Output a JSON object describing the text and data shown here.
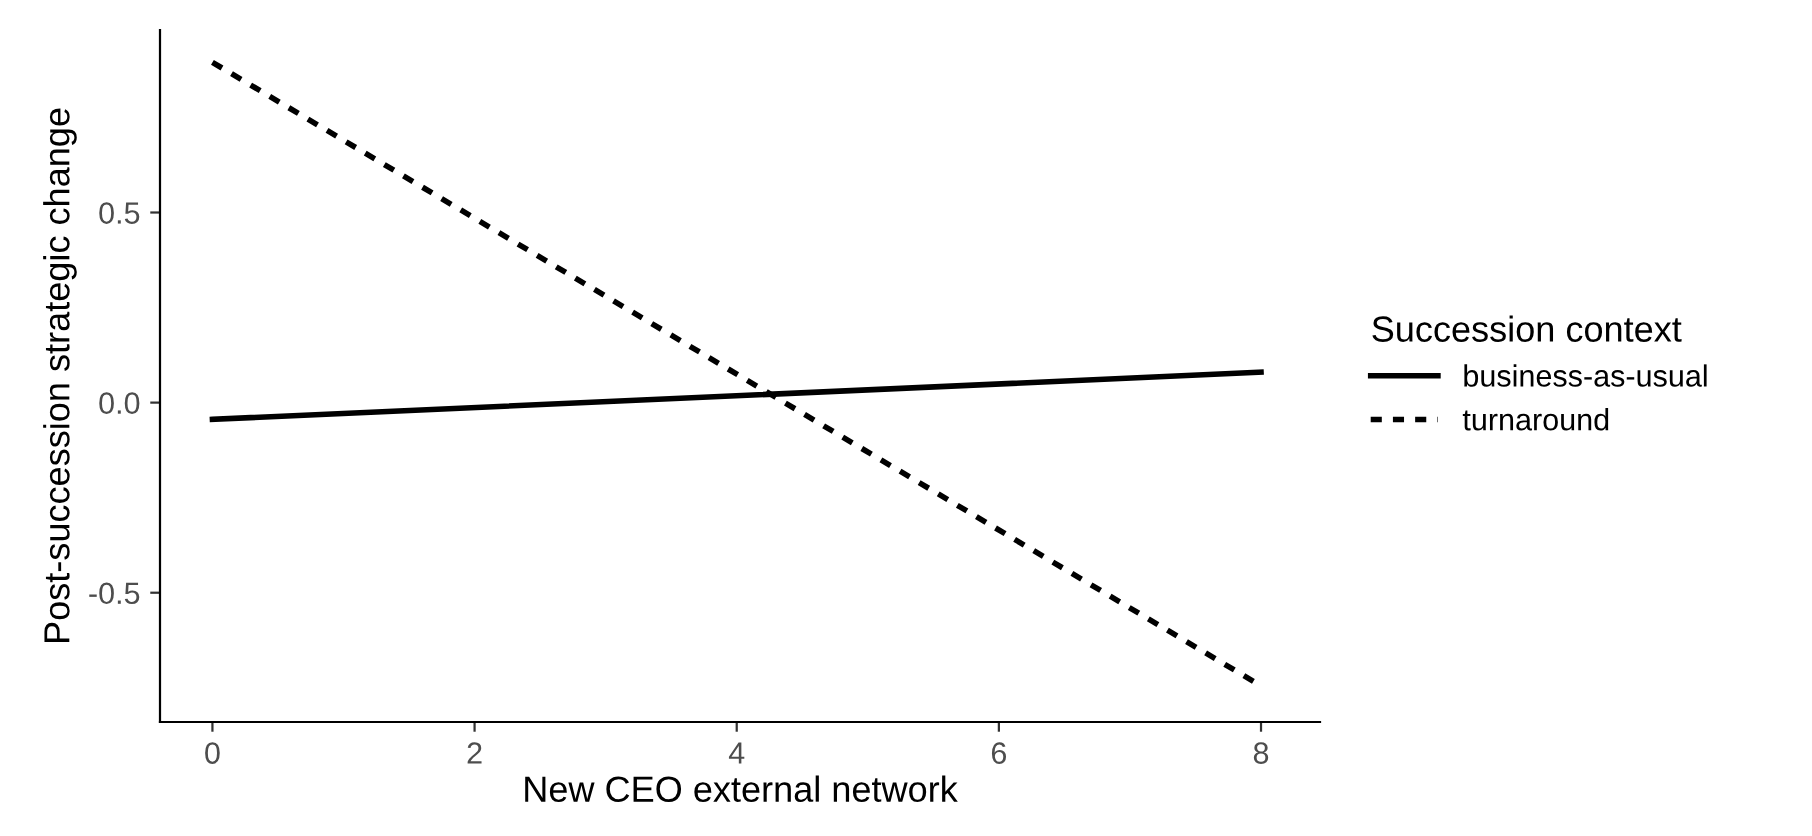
{
  "chart_data": {
    "type": "line",
    "xlabel": "New CEO external network",
    "ylabel": "Post-succession strategic change",
    "legend_title": "Succession context",
    "x": [
      0,
      8
    ],
    "series": [
      {
        "name": "business-as-usual",
        "color": "#000000",
        "values": [
          -0.044,
          0.08
        ],
        "line_style": "solid"
      },
      {
        "name": "turnaround",
        "color": "#000000",
        "values": [
          0.895,
          -0.745
        ],
        "line_style": "dotted"
      }
    ],
    "xlim": [
      -0.4,
      8.45
    ],
    "xticks": [
      0,
      2,
      4,
      6,
      8
    ],
    "ylim": [
      -0.84,
      0.98
    ],
    "yticks": [
      -0.5,
      {
        "value": 0,
        "label": "0.0"
      },
      0.5
    ],
    "grid": false,
    "legend": "right",
    "marker": "none"
  }
}
